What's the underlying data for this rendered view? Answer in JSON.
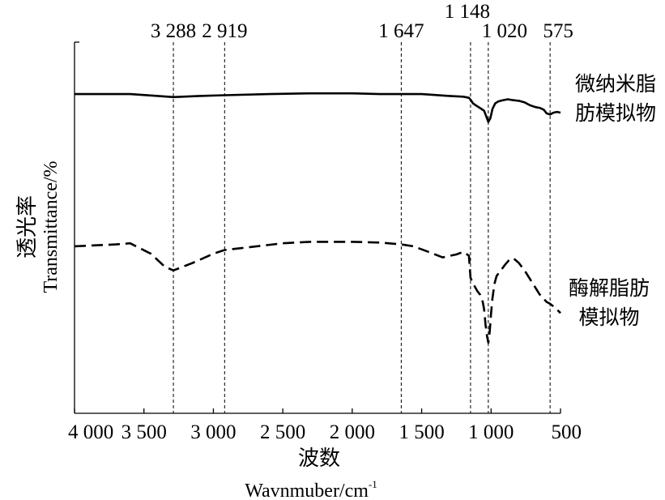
{
  "chart_data": {
    "type": "line",
    "title": "",
    "xlabel_cn": "波数",
    "xlabel_en": "Wavnmuber/cm",
    "xlabel_en_sup": "-1",
    "ylabel_cn": "透光率",
    "ylabel_en": "Transmittance/%",
    "x_reversed": true,
    "xlim": [
      4000,
      500
    ],
    "x_ticks": [
      {
        "value": 4000,
        "label": "4 000"
      },
      {
        "value": 3500,
        "label": "3 500"
      },
      {
        "value": 3000,
        "label": "3 000"
      },
      {
        "value": 2500,
        "label": "2 500"
      },
      {
        "value": 2000,
        "label": "2 000"
      },
      {
        "value": 1500,
        "label": "1 500"
      },
      {
        "value": 1000,
        "label": "1 000"
      },
      {
        "value": 500,
        "label": "500"
      }
    ],
    "y_ticks_shown": false,
    "grid": false,
    "reference_lines": [
      {
        "value": 3288,
        "label": "3 288"
      },
      {
        "value": 2919,
        "label": "2 919"
      },
      {
        "value": 1647,
        "label": "1 647"
      },
      {
        "value": 1148,
        "label": "1 148"
      },
      {
        "value": 1020,
        "label": "1 020"
      },
      {
        "value": 575,
        "label": "575"
      }
    ],
    "series": [
      {
        "name": "微纳米脂肪模拟物",
        "name_lines": [
          "微纳米脂",
          "肪模拟物"
        ],
        "style": "solid",
        "color": "#000000",
        "x": [
          4000,
          3800,
          3600,
          3400,
          3288,
          3100,
          2919,
          2600,
          2300,
          2000,
          1800,
          1647,
          1500,
          1300,
          1200,
          1160,
          1148,
          1130,
          1110,
          1090,
          1070,
          1050,
          1035,
          1020,
          1005,
          990,
          970,
          950,
          920,
          880,
          850,
          800,
          760,
          720,
          680,
          650,
          620,
          600,
          575,
          550,
          525,
          500
        ],
        "y": [
          86,
          86,
          86,
          85.5,
          85.2,
          85.5,
          85.7,
          86,
          86.2,
          86.2,
          86,
          86,
          86,
          85.5,
          85.3,
          85,
          84.5,
          83.5,
          83,
          82.5,
          82,
          81.5,
          80,
          78.5,
          79.5,
          82,
          83.5,
          84,
          84.3,
          84.6,
          84.4,
          84.2,
          83.8,
          83,
          82.5,
          82.3,
          81.8,
          80.8,
          80.5,
          81,
          81.2,
          81
        ]
      },
      {
        "name": "酶解脂肪模拟物",
        "name_lines": [
          "酶解脂肪",
          "模拟物"
        ],
        "style": "dashed",
        "color": "#000000",
        "x": [
          4000,
          3700,
          3600,
          3450,
          3350,
          3288,
          3150,
          3000,
          2919,
          2800,
          2500,
          2300,
          2000,
          1800,
          1647,
          1560,
          1450,
          1350,
          1250,
          1200,
          1160,
          1148,
          1130,
          1100,
          1080,
          1060,
          1050,
          1040,
          1030,
          1020,
          1010,
          1000,
          990,
          975,
          960,
          930,
          900,
          870,
          840,
          800,
          750,
          700,
          650,
          600,
          575,
          540,
          500
        ],
        "y": [
          45,
          45.5,
          45.8,
          43,
          39.5,
          38.5,
          40.5,
          43,
          44,
          44.5,
          45.8,
          46.2,
          46.2,
          46,
          45.5,
          45,
          43.5,
          42,
          42.8,
          43.5,
          42.5,
          36.5,
          35,
          33,
          32,
          30,
          28,
          24,
          21,
          19,
          22,
          27,
          31,
          35,
          37,
          38.5,
          40,
          41.3,
          41.8,
          40.5,
          38,
          35,
          32,
          30,
          29.5,
          28.5,
          27
        ]
      }
    ]
  }
}
